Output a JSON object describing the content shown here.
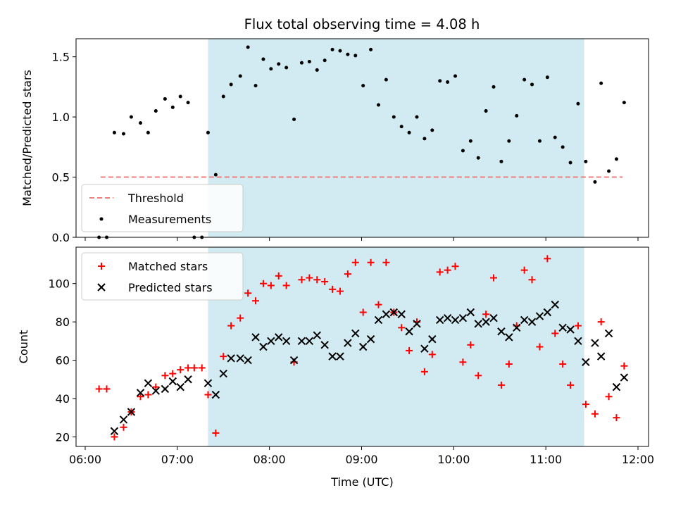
{
  "chart_data": [
    {
      "type": "scatter",
      "title": "Flux total observing time = 4.08 h",
      "ylabel": "Matched/Predicted stars",
      "xlabel": "",
      "x_range": [
        "06:00",
        "12:00"
      ],
      "ylim": [
        0,
        1.65
      ],
      "y_ticks": [
        "0.0",
        "0.5",
        "1.0",
        "1.5"
      ],
      "shaded_interval": {
        "start": "07:20",
        "end": "11:25",
        "color": "#add8e6"
      },
      "threshold": {
        "name": "Threshold",
        "value": 0.5,
        "x_start": "06:10",
        "x_end": "11:50",
        "color": "#f08080",
        "style": "dashed"
      },
      "legend": {
        "location": "lower-left",
        "entries": [
          "Threshold",
          "Measurements"
        ]
      },
      "series": [
        {
          "name": "Measurements",
          "marker": "dot",
          "color": "#000000",
          "points": [
            [
              "06:09",
              0.0
            ],
            [
              "06:14",
              0.0
            ],
            [
              "06:19",
              0.87
            ],
            [
              "06:25",
              0.86
            ],
            [
              "06:30",
              1.0
            ],
            [
              "06:36",
              0.95
            ],
            [
              "06:41",
              0.87
            ],
            [
              "06:46",
              1.05
            ],
            [
              "06:52",
              1.15
            ],
            [
              "06:57",
              1.08
            ],
            [
              "07:02",
              1.17
            ],
            [
              "07:07",
              1.12
            ],
            [
              "07:11",
              0.0
            ],
            [
              "07:16",
              0.0
            ],
            [
              "07:20",
              0.87
            ],
            [
              "07:25",
              0.52
            ],
            [
              "07:30",
              1.17
            ],
            [
              "07:35",
              1.27
            ],
            [
              "07:41",
              1.34
            ],
            [
              "07:46",
              1.58
            ],
            [
              "07:51",
              1.26
            ],
            [
              "07:56",
              1.48
            ],
            [
              "08:01",
              1.4
            ],
            [
              "08:06",
              1.44
            ],
            [
              "08:11",
              1.41
            ],
            [
              "08:16",
              0.98
            ],
            [
              "08:21",
              1.45
            ],
            [
              "08:26",
              1.46
            ],
            [
              "08:31",
              1.39
            ],
            [
              "08:36",
              1.47
            ],
            [
              "08:41",
              1.56
            ],
            [
              "08:46",
              1.55
            ],
            [
              "08:51",
              1.52
            ],
            [
              "08:56",
              1.51
            ],
            [
              "09:01",
              1.26
            ],
            [
              "09:06",
              1.56
            ],
            [
              "09:11",
              1.1
            ],
            [
              "09:16",
              1.31
            ],
            [
              "09:21",
              1.0
            ],
            [
              "09:26",
              0.92
            ],
            [
              "09:31",
              0.87
            ],
            [
              "09:36",
              1.0
            ],
            [
              "09:41",
              0.82
            ],
            [
              "09:46",
              0.89
            ],
            [
              "09:51",
              1.3
            ],
            [
              "09:56",
              1.29
            ],
            [
              "10:01",
              1.34
            ],
            [
              "10:06",
              0.72
            ],
            [
              "10:11",
              0.8
            ],
            [
              "10:16",
              0.66
            ],
            [
              "10:21",
              1.05
            ],
            [
              "10:26",
              1.25
            ],
            [
              "10:31",
              0.63
            ],
            [
              "10:36",
              0.8
            ],
            [
              "10:41",
              1.01
            ],
            [
              "10:46",
              1.31
            ],
            [
              "10:51",
              1.27
            ],
            [
              "10:56",
              0.8
            ],
            [
              "11:01",
              1.33
            ],
            [
              "11:06",
              0.83
            ],
            [
              "11:11",
              0.75
            ],
            [
              "11:16",
              0.62
            ],
            [
              "11:21",
              1.11
            ],
            [
              "11:26",
              0.63
            ],
            [
              "11:32",
              0.46
            ],
            [
              "11:36",
              1.28
            ],
            [
              "11:41",
              0.55
            ],
            [
              "11:46",
              0.65
            ],
            [
              "11:51",
              1.12
            ]
          ]
        }
      ]
    },
    {
      "type": "scatter",
      "title": "",
      "ylabel": "Count",
      "xlabel": "Time (UTC)",
      "x_range": [
        "06:00",
        "12:00"
      ],
      "x_ticks": [
        "06:00",
        "07:00",
        "08:00",
        "09:00",
        "10:00",
        "11:00",
        "12:00"
      ],
      "ylim": [
        15,
        119
      ],
      "y_ticks": [
        "20",
        "40",
        "60",
        "80",
        "100"
      ],
      "shaded_interval": {
        "start": "07:20",
        "end": "11:25",
        "color": "#add8e6"
      },
      "legend": {
        "location": "top-left",
        "entries": [
          "Matched stars",
          "Predicted stars"
        ]
      },
      "series": [
        {
          "name": "Matched stars",
          "marker": "plus",
          "color": "#ff0000",
          "points": [
            [
              "06:09",
              45
            ],
            [
              "06:14",
              45
            ],
            [
              "06:19",
              20
            ],
            [
              "06:25",
              25
            ],
            [
              "06:30",
              33
            ],
            [
              "06:36",
              41
            ],
            [
              "06:41",
              42
            ],
            [
              "06:46",
              46
            ],
            [
              "06:52",
              52
            ],
            [
              "06:57",
              53
            ],
            [
              "07:02",
              55
            ],
            [
              "07:07",
              56
            ],
            [
              "07:11",
              56
            ],
            [
              "07:16",
              56
            ],
            [
              "07:20",
              42
            ],
            [
              "07:25",
              22
            ],
            [
              "07:30",
              62
            ],
            [
              "07:35",
              78
            ],
            [
              "07:41",
              82
            ],
            [
              "07:46",
              95
            ],
            [
              "07:51",
              91
            ],
            [
              "07:56",
              100
            ],
            [
              "08:01",
              99
            ],
            [
              "08:06",
              104
            ],
            [
              "08:11",
              99
            ],
            [
              "08:16",
              59
            ],
            [
              "08:21",
              102
            ],
            [
              "08:26",
              103
            ],
            [
              "08:31",
              102
            ],
            [
              "08:36",
              101
            ],
            [
              "08:41",
              97
            ],
            [
              "08:46",
              96
            ],
            [
              "08:51",
              105
            ],
            [
              "08:56",
              111
            ],
            [
              "09:01",
              85
            ],
            [
              "09:06",
              111
            ],
            [
              "09:11",
              89
            ],
            [
              "09:16",
              111
            ],
            [
              "09:21",
              85
            ],
            [
              "09:26",
              77
            ],
            [
              "09:31",
              65
            ],
            [
              "09:36",
              80
            ],
            [
              "09:41",
              54
            ],
            [
              "09:46",
              63
            ],
            [
              "09:51",
              106
            ],
            [
              "09:56",
              107
            ],
            [
              "10:01",
              109
            ],
            [
              "10:06",
              59
            ],
            [
              "10:11",
              68
            ],
            [
              "10:16",
              52
            ],
            [
              "10:21",
              84
            ],
            [
              "10:26",
              103
            ],
            [
              "10:31",
              47
            ],
            [
              "10:36",
              58
            ],
            [
              "10:41",
              78
            ],
            [
              "10:46",
              107
            ],
            [
              "10:51",
              102
            ],
            [
              "10:56",
              67
            ],
            [
              "11:01",
              113
            ],
            [
              "11:06",
              74
            ],
            [
              "11:11",
              58
            ],
            [
              "11:16",
              47
            ],
            [
              "11:21",
              78
            ],
            [
              "11:26",
              37
            ],
            [
              "11:32",
              32
            ],
            [
              "11:36",
              80
            ],
            [
              "11:41",
              41
            ],
            [
              "11:46",
              30
            ],
            [
              "11:51",
              57
            ]
          ]
        },
        {
          "name": "Predicted stars",
          "marker": "x",
          "color": "#000000",
          "points": [
            [
              "06:19",
              23
            ],
            [
              "06:25",
              29
            ],
            [
              "06:30",
              33
            ],
            [
              "06:36",
              43
            ],
            [
              "06:41",
              48
            ],
            [
              "06:46",
              44
            ],
            [
              "06:52",
              45
            ],
            [
              "06:57",
              49
            ],
            [
              "07:02",
              46
            ],
            [
              "07:07",
              50
            ],
            [
              "07:20",
              48
            ],
            [
              "07:25",
              42
            ],
            [
              "07:30",
              53
            ],
            [
              "07:35",
              61
            ],
            [
              "07:41",
              61
            ],
            [
              "07:46",
              60
            ],
            [
              "07:51",
              72
            ],
            [
              "07:56",
              67
            ],
            [
              "08:01",
              70
            ],
            [
              "08:06",
              72
            ],
            [
              "08:11",
              70
            ],
            [
              "08:16",
              60
            ],
            [
              "08:21",
              70
            ],
            [
              "08:26",
              70
            ],
            [
              "08:31",
              73
            ],
            [
              "08:36",
              68
            ],
            [
              "08:41",
              62
            ],
            [
              "08:46",
              62
            ],
            [
              "08:51",
              69
            ],
            [
              "08:56",
              74
            ],
            [
              "09:01",
              67
            ],
            [
              "09:06",
              71
            ],
            [
              "09:11",
              81
            ],
            [
              "09:16",
              84
            ],
            [
              "09:21",
              85
            ],
            [
              "09:26",
              84
            ],
            [
              "09:31",
              75
            ],
            [
              "09:36",
              79
            ],
            [
              "09:41",
              66
            ],
            [
              "09:46",
              71
            ],
            [
              "09:51",
              81
            ],
            [
              "09:56",
              82
            ],
            [
              "10:01",
              81
            ],
            [
              "10:06",
              82
            ],
            [
              "10:11",
              85
            ],
            [
              "10:16",
              79
            ],
            [
              "10:21",
              80
            ],
            [
              "10:26",
              82
            ],
            [
              "10:31",
              75
            ],
            [
              "10:36",
              72
            ],
            [
              "10:41",
              77
            ],
            [
              "10:46",
              81
            ],
            [
              "10:51",
              80
            ],
            [
              "10:56",
              83
            ],
            [
              "11:01",
              85
            ],
            [
              "11:06",
              89
            ],
            [
              "11:11",
              77
            ],
            [
              "11:16",
              76
            ],
            [
              "11:21",
              70
            ],
            [
              "11:26",
              59
            ],
            [
              "11:32",
              69
            ],
            [
              "11:36",
              62
            ],
            [
              "11:41",
              74
            ],
            [
              "11:46",
              46
            ],
            [
              "11:51",
              51
            ]
          ]
        }
      ]
    }
  ]
}
